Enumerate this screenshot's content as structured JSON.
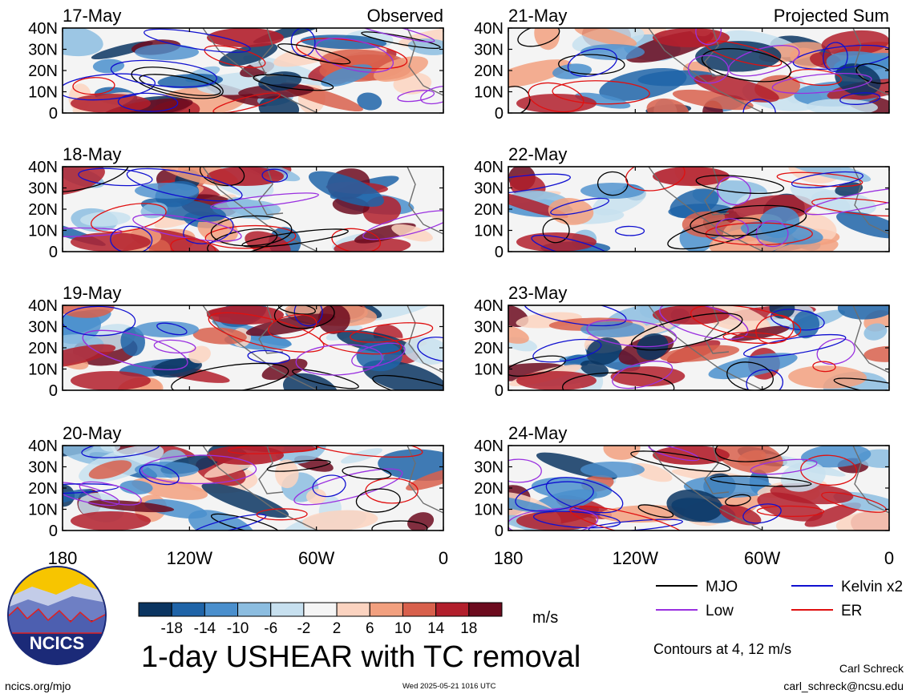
{
  "chart_data": {
    "type": "heatmap",
    "title": "1-day USHEAR with TC removal",
    "units": "m/s",
    "contour_note": "Contours at 4, 12 m/s",
    "xlim": [
      "180",
      "0"
    ],
    "ylim": [
      "0",
      "40N"
    ],
    "x_ticks": [
      "180",
      "120W",
      "60W",
      "0"
    ],
    "y_ticks": [
      "0",
      "10N",
      "20N",
      "30N",
      "40N"
    ],
    "color_levels": [
      "-18",
      "-14",
      "-10",
      "-6",
      "-2",
      "2",
      "6",
      "10",
      "14",
      "18"
    ],
    "color_palette": [
      "#0b3561",
      "#1f64a8",
      "#4a8fcd",
      "#8cbde0",
      "#c7e0ef",
      "#f5f5f5",
      "#fbd3c0",
      "#f2a07f",
      "#d8604c",
      "#b21f2c",
      "#6c0b1e"
    ],
    "panels": [
      {
        "date": "17-May",
        "label": "Observed",
        "column": "left",
        "row": 0
      },
      {
        "date": "18-May",
        "label": "",
        "column": "left",
        "row": 1
      },
      {
        "date": "19-May",
        "label": "",
        "column": "left",
        "row": 2
      },
      {
        "date": "20-May",
        "label": "",
        "column": "left",
        "row": 3
      },
      {
        "date": "21-May",
        "label": "Projected Sum",
        "column": "right",
        "row": 0
      },
      {
        "date": "22-May",
        "label": "",
        "column": "right",
        "row": 1
      },
      {
        "date": "23-May",
        "label": "",
        "column": "right",
        "row": 2
      },
      {
        "date": "24-May",
        "label": "",
        "column": "right",
        "row": 3
      }
    ],
    "legend": [
      {
        "name": "MJO",
        "color": "#000000"
      },
      {
        "name": "Kelvin x2",
        "color": "#1010d0"
      },
      {
        "name": "Low",
        "color": "#9a30e0"
      },
      {
        "name": "ER",
        "color": "#e01010"
      }
    ]
  },
  "logo": {
    "text": "NCICS"
  },
  "footer": {
    "url": "ncics.org/mjo",
    "timestamp": "Wed 2025-05-21 1016 UTC",
    "author": "Carl Schreck",
    "email": "carl_schreck@ncsu.edu"
  }
}
